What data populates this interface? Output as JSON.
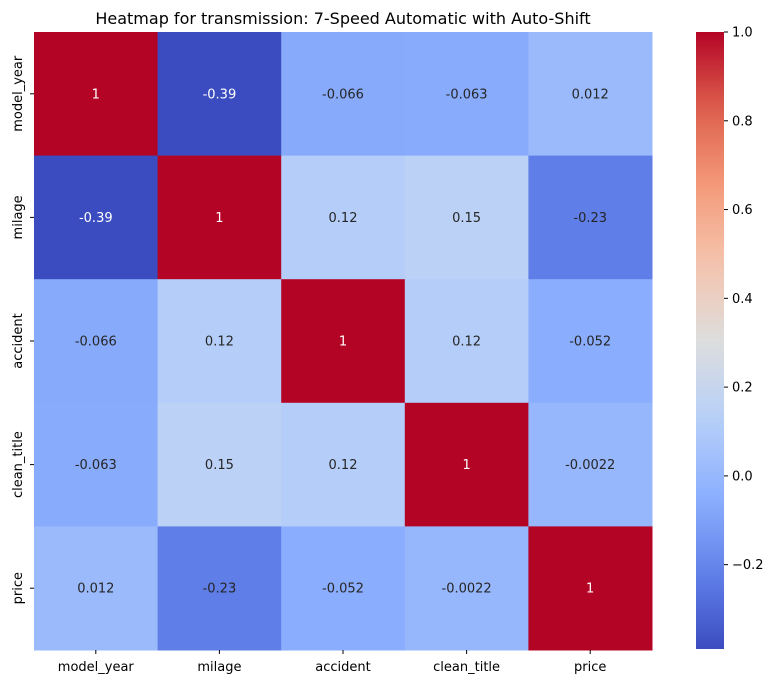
{
  "chart_data": {
    "type": "heatmap",
    "title": "Heatmap for transmission: 7-Speed Automatic with Auto-Shift",
    "rows": [
      "model_year",
      "milage",
      "accident",
      "clean_title",
      "price"
    ],
    "cols": [
      "model_year",
      "milage",
      "accident",
      "clean_title",
      "price"
    ],
    "values": [
      [
        1,
        -0.39,
        -0.066,
        -0.063,
        0.012
      ],
      [
        -0.39,
        1,
        0.12,
        0.15,
        -0.23
      ],
      [
        -0.066,
        0.12,
        1,
        0.12,
        -0.052
      ],
      [
        -0.063,
        0.15,
        0.12,
        1,
        -0.0022
      ],
      [
        0.012,
        -0.23,
        -0.052,
        -0.0022,
        1
      ]
    ],
    "labels": [
      [
        "1",
        "-0.39",
        "-0.066",
        "-0.063",
        "0.012"
      ],
      [
        "-0.39",
        "1",
        "0.12",
        "0.15",
        "-0.23"
      ],
      [
        "-0.066",
        "0.12",
        "1",
        "0.12",
        "-0.052"
      ],
      [
        "-0.063",
        "0.15",
        "0.12",
        "1",
        "-0.0022"
      ],
      [
        "0.012",
        "-0.23",
        "-0.052",
        "-0.0022",
        "1"
      ]
    ],
    "colormap": "coolwarm",
    "vmin": -0.39,
    "vmax": 1.0,
    "colorbar_ticks": [
      -0.2,
      0.0,
      0.2,
      0.4,
      0.6,
      0.8,
      1.0
    ],
    "colorbar_tick_labels": [
      "−0.2",
      "0.0",
      "0.2",
      "0.4",
      "0.6",
      "0.8",
      "1.0"
    ]
  }
}
